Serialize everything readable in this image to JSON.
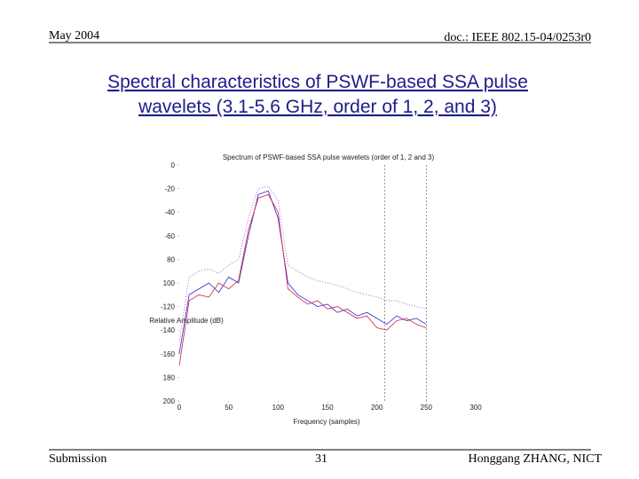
{
  "header": {
    "left": "May 2004",
    "right": "doc.: IEEE 802.15-04/0253r0"
  },
  "title": [
    "Spectral characteristics of  PSWF-based SSA pulse",
    "wavelets (3.1-5.6 GHz, order of 1, 2, and 3)"
  ],
  "chart_data": {
    "type": "line",
    "title": "Spectrum of PSWF-based SSA pulse wavelets (order of 1, 2 and 3)",
    "x_label": "Frequency (samples)",
    "y_label": "Relative Amplitude (dB)",
    "x": [
      0,
      10,
      20,
      30,
      40,
      50,
      60,
      70,
      80,
      90,
      100,
      110,
      120,
      130,
      140,
      150,
      160,
      170,
      180,
      190,
      200,
      210,
      220,
      230,
      240,
      250
    ],
    "series": [
      {
        "color": "#2b2bd0",
        "dash": "none",
        "values": [
          -160,
          -110,
          -105,
          -100,
          -108,
          -95,
          -100,
          -60,
          -25,
          -22,
          -45,
          -100,
          -110,
          -115,
          -120,
          -118,
          -125,
          -122,
          -128,
          -125,
          -130,
          -135,
          -128,
          -132,
          -130,
          -135
        ]
      },
      {
        "color": "#d02040",
        "dash": "none",
        "values": [
          -170,
          -115,
          -110,
          -112,
          -100,
          -105,
          -98,
          -55,
          -28,
          -25,
          -40,
          -105,
          -112,
          -118,
          -115,
          -122,
          -120,
          -125,
          -130,
          -128,
          -138,
          -140,
          -132,
          -130,
          -135,
          -138
        ]
      },
      {
        "color": "#a040c0",
        "dash": "1 2",
        "values": [
          -150,
          -95,
          -90,
          -88,
          -92,
          -85,
          -80,
          -45,
          -20,
          -18,
          -30,
          -85,
          -90,
          -95,
          -98,
          -100,
          -102,
          -105,
          -108,
          -110,
          -112,
          -115,
          -115,
          -118,
          -120,
          -122
        ]
      }
    ],
    "reference_lines_x": [
      208,
      250
    ],
    "xlim": [
      0,
      300
    ],
    "xticks": [
      0,
      50,
      100,
      150,
      200,
      250,
      300
    ],
    "ylim": [
      -200,
      0
    ],
    "yticks": [
      0,
      -20,
      -40,
      -60,
      {
        "value": -80,
        "label": "80"
      },
      {
        "value": -100,
        "label": "100"
      },
      -120,
      -140,
      -160,
      {
        "value": -180,
        "label": "180"
      },
      {
        "value": -200,
        "label": "200"
      }
    ]
  },
  "footer": {
    "left": "Submission",
    "center": "31",
    "right": "Honggang ZHANG, NICT"
  }
}
